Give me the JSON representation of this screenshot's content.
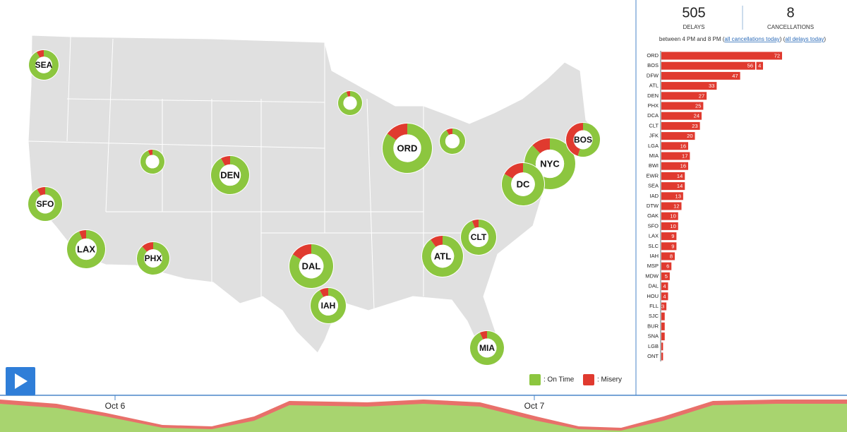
{
  "map": {
    "airports": [
      "SEA",
      null,
      "ORD",
      null,
      null,
      "DEN",
      "NYC",
      "BOS",
      "DC",
      "SFO",
      "LAX",
      "PHX",
      "CLT",
      "ATL",
      "DAL",
      "IAH",
      "MIA"
    ],
    "on_time": [
      92,
      95,
      85,
      92,
      94,
      92,
      88,
      55,
      83,
      92,
      94,
      88,
      94,
      90,
      84,
      92,
      93
    ],
    "misery": [
      8,
      5,
      15,
      8,
      6,
      8,
      12,
      45,
      17,
      8,
      6,
      12,
      6,
      10,
      16,
      8,
      7
    ],
    "on_time_color": "#8cc63f",
    "misery_color": "#e03a2f",
    "legend": {
      "on_time": ": On Time",
      "misery": ": Misery"
    }
  },
  "summary": {
    "delays": 505,
    "delays_label": "DELAYS",
    "cancellations": 8,
    "cancellations_label": "CANCELLATIONS",
    "note_prefix": "between 4 PM and 8 PM (",
    "link_cancellations": "all cancellations today",
    "note_middle": ") (",
    "link_delays": "all delays today",
    "note_suffix": ")"
  },
  "ranking": {
    "airports": [
      "ORD",
      "BOS",
      "DFW",
      "ATL",
      "DEN",
      "PHX",
      "DCA",
      "CLT",
      "JFK",
      "LGA",
      "MIA",
      "BWI",
      "EWR",
      "SEA",
      "IAD",
      "DTW",
      "OAK",
      "SFO",
      "LAX",
      "SLC",
      "IAH",
      "MSP",
      "MDW",
      "DAL",
      "HOU",
      "FLL",
      "SJC",
      "BUR",
      "SNA",
      "LGB",
      "ONT"
    ],
    "delays": [
      72,
      56,
      47,
      33,
      27,
      25,
      24,
      23,
      20,
      16,
      17,
      16,
      14,
      14,
      13,
      12,
      10,
      10,
      9,
      9,
      8,
      6,
      5,
      4,
      4,
      3,
      2,
      2,
      2,
      1,
      1
    ],
    "cancellations": [
      null,
      4,
      null,
      null,
      null,
      null,
      null,
      null,
      null,
      null,
      null,
      null,
      null,
      null,
      null,
      null,
      null,
      null,
      null,
      null,
      null,
      null,
      null,
      null,
      null,
      null,
      null,
      null,
      null,
      null,
      null
    ],
    "color": "#e03a2f"
  },
  "timeline": {
    "labels": [
      "Oct 6",
      "Oct 7"
    ]
  }
}
